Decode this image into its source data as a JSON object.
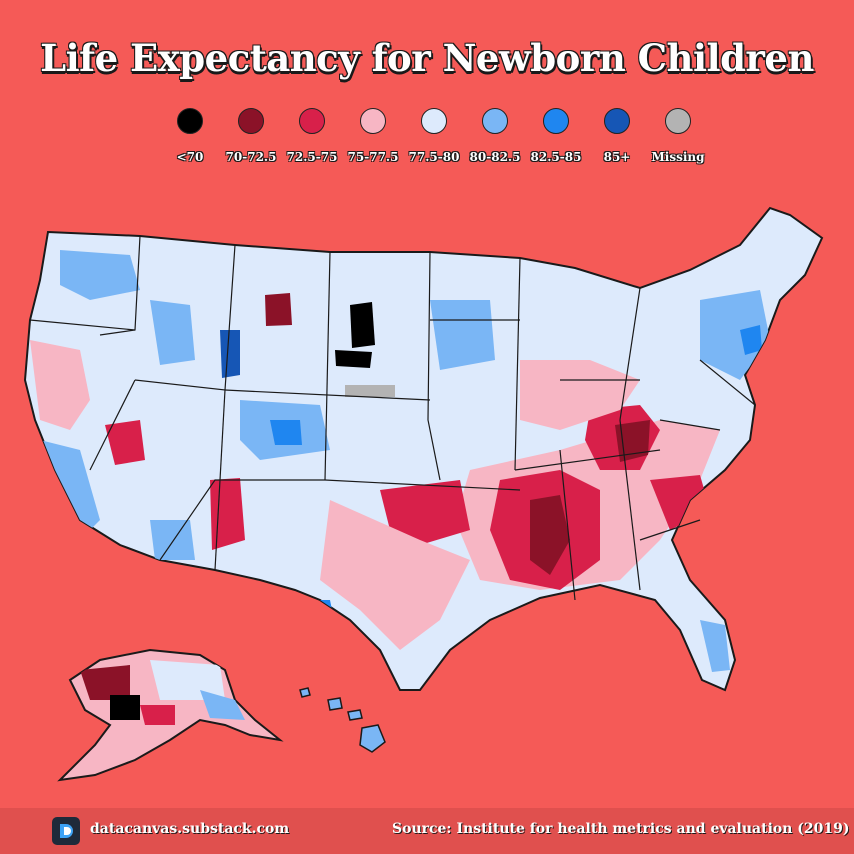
{
  "title": "Life Expectancy for Newborn Children",
  "legend": [
    {
      "label": "<70",
      "color": "#000000"
    },
    {
      "label": "70-72.5",
      "color": "#8b1228"
    },
    {
      "label": "72.5-75",
      "color": "#d8204a"
    },
    {
      "label": "75-77.5",
      "color": "#f7b6c4"
    },
    {
      "label": "77.5-80",
      "color": "#ddeafc"
    },
    {
      "label": "80-82.5",
      "color": "#7ab6f5"
    },
    {
      "label": "82.5-85",
      "color": "#1f86f0"
    },
    {
      "label": "85+",
      "color": "#1656b5"
    },
    {
      "label": "Missing",
      "color": "#b3b3b3"
    }
  ],
  "footer": {
    "site": "datacanvas.substack.com",
    "source": "Source: Institute for health metrics and evaluation (2019)"
  },
  "colors": {
    "background": "#f55a57",
    "map_base": "#ddeafc",
    "border": "#1a1a1a"
  }
}
